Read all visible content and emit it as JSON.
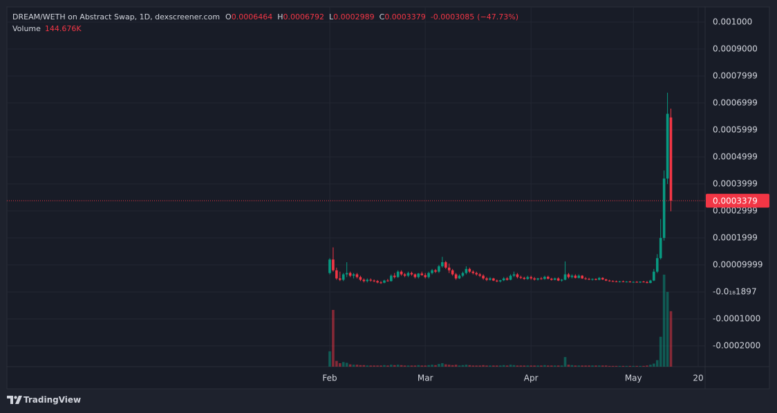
{
  "chart_data": {
    "type": "candlestick",
    "title": "DREAM/WETH on Abstract Swap, 1D, dexscreener.com",
    "ohlc_labels": [
      "O",
      "H",
      "L",
      "C"
    ],
    "change": -0.0003085,
    "change_pct_label": "(−47.73%)",
    "volume_title": "Volume",
    "volume_label": "144.676K",
    "categories": [
      "Feb",
      null,
      null,
      null,
      null,
      null,
      null,
      null,
      null,
      null,
      null,
      null,
      null,
      null,
      null,
      null,
      null,
      null,
      null,
      null,
      null,
      null,
      null,
      null,
      null,
      null,
      null,
      null,
      "Mar",
      null,
      null,
      null,
      null,
      null,
      null,
      null,
      null,
      null,
      null,
      null,
      null,
      null,
      null,
      null,
      null,
      null,
      null,
      null,
      null,
      null,
      null,
      null,
      null,
      null,
      null,
      null,
      null,
      null,
      null,
      "Apr",
      null,
      null,
      null,
      null,
      null,
      null,
      null,
      null,
      null,
      null,
      null,
      null,
      null,
      null,
      null,
      null,
      null,
      null,
      null,
      null,
      null,
      null,
      null,
      null,
      null,
      null,
      null,
      null,
      null,
      "May",
      null,
      null,
      null,
      null,
      null,
      null,
      null,
      null,
      null,
      null,
      null,
      null,
      null,
      null,
      null,
      null,
      null,
      null,
      "20"
    ],
    "open": [
      7e-05,
      0.00012,
      8e-05,
      5e-05,
      4.5e-05,
      6.5e-05,
      7e-05,
      6e-05,
      6.5e-05,
      5.5e-05,
      4.5e-05,
      4e-05,
      4.5e-05,
      4.2e-05,
      4e-05,
      3.5e-05,
      3.4e-05,
      4.2e-05,
      4e-05,
      6e-05,
      5.5e-05,
      7.5e-05,
      6.5e-05,
      6e-05,
      7e-05,
      6.5e-05,
      5.5e-05,
      6.8e-05,
      6.2e-05,
      5.5e-05,
      7e-05,
      8e-05,
      7.5e-05,
      9.5e-05,
      0.00011,
      9e-05,
      8e-05,
      6.5e-05,
      5e-05,
      6e-05,
      7e-05,
      8.5e-05,
      7.5e-05,
      7e-05,
      6.5e-05,
      6e-05,
      5e-05,
      4.5e-05,
      5e-05,
      4.2e-05,
      3.9e-05,
      4.3e-05,
      5e-05,
      4.5e-05,
      6e-05,
      6.5e-05,
      5.5e-05,
      5.2e-05,
      4.8e-05,
      5.5e-05,
      5e-05,
      4.6e-05,
      5e-05,
      4.8e-05,
      5.6e-05,
      4.9e-05,
      4.5e-05,
      5e-05,
      4.2e-05,
      4.5e-05,
      6.5e-05,
      5.5e-05,
      6e-05,
      5.2e-05,
      6e-05,
      5e-05,
      4.8e-05,
      4.6e-05,
      4.8e-05,
      4.5e-05,
      5.2e-05,
      4.6e-05,
      4.2e-05,
      4e-05,
      3.9e-05,
      3.8e-05,
      3.9e-05,
      3.7e-05,
      3.8e-05,
      3.6e-05,
      3.7e-05,
      3.5e-05,
      3.8e-05,
      3.6e-05,
      3.3e-05,
      4.2e-05,
      7.5e-05,
      0.000125,
      0.0002,
      0.00042,
      0.0006464,
      null,
      null,
      null,
      null,
      null,
      null,
      null,
      null
    ],
    "high": [
      0.000125,
      0.000165,
      9e-05,
      7.5e-05,
      7e-05,
      0.00011,
      7.5e-05,
      7e-05,
      7e-05,
      6e-05,
      5e-05,
      5e-05,
      5e-05,
      4.6e-05,
      4.4e-05,
      4e-05,
      4.5e-05,
      4.8e-05,
      6.5e-05,
      7e-05,
      8e-05,
      8e-05,
      7e-05,
      7.5e-05,
      7.5e-05,
      6.8e-05,
      7e-05,
      7.5e-05,
      7e-05,
      7.5e-05,
      8.5e-05,
      8.5e-05,
      0.0001,
      0.00013,
      0.000115,
      0.000105,
      8.5e-05,
      7e-05,
      6.5e-05,
      7.5e-05,
      9.5e-05,
      9e-05,
      8e-05,
      7.5e-05,
      7e-05,
      6.5e-05,
      5.5e-05,
      5.5e-05,
      5.2e-05,
      4.6e-05,
      4.5e-05,
      5.5e-05,
      5.5e-05,
      6.5e-05,
      7.5e-05,
      7e-05,
      6e-05,
      5.6e-05,
      6e-05,
      6e-05,
      5.5e-05,
      5.2e-05,
      5.5e-05,
      6e-05,
      6e-05,
      5.2e-05,
      5.3e-05,
      5.4e-05,
      4.8e-05,
      0.000113,
      7e-05,
      6.5e-05,
      6.5e-05,
      6.5e-05,
      6.2e-05,
      5.5e-05,
      5.2e-05,
      5e-05,
      5e-05,
      5.5e-05,
      5.4e-05,
      4.9e-05,
      4.5e-05,
      4.3e-05,
      4.2e-05,
      4.1e-05,
      4.2e-05,
      4e-05,
      4.1e-05,
      3.9e-05,
      4e-05,
      3.9e-05,
      4.1e-05,
      4.1e-05,
      4.5e-05,
      8.5e-05,
      0.00014,
      0.00027,
      0.00045,
      0.000738,
      0.0006792,
      null,
      null,
      null,
      null,
      null,
      null,
      null,
      null
    ],
    "low": [
      6.5e-05,
      7.5e-05,
      4.5e-05,
      4e-05,
      4e-05,
      5.5e-05,
      5.5e-05,
      5e-05,
      5e-05,
      4e-05,
      3.5e-05,
      3.5e-05,
      3.8e-05,
      3.6e-05,
      3.2e-05,
      3e-05,
      3.2e-05,
      3.8e-05,
      3.8e-05,
      5e-05,
      5.2e-05,
      6e-05,
      5.5e-05,
      5.5e-05,
      6e-05,
      5e-05,
      5e-05,
      6e-05,
      5e-05,
      5e-05,
      6.5e-05,
      7e-05,
      7e-05,
      9e-05,
      8.5e-05,
      7e-05,
      6e-05,
      4.5e-05,
      4.8e-05,
      5.5e-05,
      6.5e-05,
      7e-05,
      6.5e-05,
      6e-05,
      5.5e-05,
      4.5e-05,
      4e-05,
      4.2e-05,
      4e-05,
      3.6e-05,
      3.5e-05,
      4e-05,
      4.2e-05,
      4.3e-05,
      5.5e-05,
      5e-05,
      4.8e-05,
      4.5e-05,
      4.5e-05,
      4.5e-05,
      4.2e-05,
      4.2e-05,
      4.5e-05,
      4.5e-05,
      4.6e-05,
      4.2e-05,
      4.3e-05,
      4e-05,
      3.8e-05,
      4.3e-05,
      5e-05,
      5e-05,
      5e-05,
      5e-05,
      4.8e-05,
      4.5e-05,
      4.4e-05,
      4.2e-05,
      4.3e-05,
      4.3e-05,
      4.4e-05,
      4e-05,
      3.8e-05,
      3.7e-05,
      3.6e-05,
      3.5e-05,
      3.6e-05,
      3.5e-05,
      3.5e-05,
      3.4e-05,
      3.4e-05,
      3.3e-05,
      3.5e-05,
      3.2e-05,
      3.2e-05,
      4e-05,
      7e-05,
      0.00012,
      0.00019,
      0.0004,
      0.0002989,
      null,
      null,
      null,
      null,
      null,
      null,
      null,
      null
    ],
    "close": [
      0.00012,
      8e-05,
      5e-05,
      4.5e-05,
      6.5e-05,
      7e-05,
      6e-05,
      6.5e-05,
      5.5e-05,
      4.5e-05,
      4e-05,
      4.5e-05,
      4.2e-05,
      4e-05,
      3.5e-05,
      3.4e-05,
      4.2e-05,
      4e-05,
      6e-05,
      5.5e-05,
      7.5e-05,
      6.5e-05,
      6e-05,
      7e-05,
      6.5e-05,
      5.5e-05,
      6.8e-05,
      6.2e-05,
      5.5e-05,
      7e-05,
      8e-05,
      7.5e-05,
      9.5e-05,
      0.00011,
      9e-05,
      8e-05,
      6.5e-05,
      5e-05,
      6e-05,
      7e-05,
      8.5e-05,
      7.5e-05,
      7e-05,
      6.5e-05,
      6e-05,
      5e-05,
      4.5e-05,
      5e-05,
      4.2e-05,
      3.9e-05,
      4.3e-05,
      5e-05,
      4.5e-05,
      6e-05,
      6.5e-05,
      5.5e-05,
      5.2e-05,
      4.8e-05,
      5.5e-05,
      5e-05,
      4.6e-05,
      5e-05,
      4.8e-05,
      5.6e-05,
      4.9e-05,
      4.5e-05,
      5e-05,
      4.2e-05,
      4.5e-05,
      6.5e-05,
      5.5e-05,
      6e-05,
      5.2e-05,
      6e-05,
      5e-05,
      4.8e-05,
      4.6e-05,
      4.8e-05,
      4.5e-05,
      5.2e-05,
      4.6e-05,
      4.2e-05,
      4e-05,
      3.9e-05,
      3.8e-05,
      3.9e-05,
      3.7e-05,
      3.8e-05,
      3.6e-05,
      3.7e-05,
      3.5e-05,
      3.8e-05,
      3.6e-05,
      3.3e-05,
      4.2e-05,
      7.5e-05,
      0.000125,
      0.0002,
      0.00042,
      0.00066,
      0.0003379,
      null,
      null,
      null,
      null,
      null,
      null,
      null,
      null
    ],
    "volume": [
      40000,
      148000,
      15000,
      9000,
      12000,
      10000,
      6000,
      5000,
      5000,
      4000,
      4000,
      3000,
      3000,
      3000,
      3000,
      3000,
      4000,
      3000,
      5000,
      4000,
      5000,
      4000,
      3000,
      3000,
      3000,
      3000,
      4000,
      3000,
      3000,
      4000,
      5000,
      4000,
      7000,
      9000,
      6000,
      5000,
      4000,
      5000,
      3000,
      4000,
      5000,
      4000,
      3000,
      3000,
      3000,
      4000,
      3000,
      3000,
      3000,
      3000,
      3000,
      4000,
      3000,
      5000,
      4000,
      3000,
      3000,
      3000,
      3000,
      3000,
      3000,
      3000,
      3000,
      4000,
      3000,
      3000,
      3000,
      3000,
      3000,
      25000,
      5000,
      4000,
      3000,
      3000,
      3000,
      3000,
      3000,
      3000,
      3000,
      3000,
      3000,
      3000,
      2000,
      2000,
      2000,
      2000,
      2000,
      2000,
      2000,
      2000,
      2000,
      2000,
      2000,
      3000,
      5000,
      8000,
      17000,
      78000,
      240000,
      195000,
      144676,
      null,
      null,
      null,
      null,
      null,
      null,
      null,
      null
    ],
    "up_color": "#089981",
    "down_color": "#f23645",
    "ylim": [
      -0.000277,
      0.001056
    ],
    "yticks": [
      {
        "value": 0.001,
        "label": "0.001000"
      },
      {
        "value": 0.0009,
        "label": "0.0009000"
      },
      {
        "value": 0.0008,
        "label": "0.0007999"
      },
      {
        "value": 0.0007,
        "label": "0.0006999"
      },
      {
        "value": 0.0006,
        "label": "0.0005999"
      },
      {
        "value": 0.0005,
        "label": "0.0004999"
      },
      {
        "value": 0.0004,
        "label": "0.0003999"
      },
      {
        "value": 0.0003,
        "label": "0.0002999"
      },
      {
        "value": 0.0002,
        "label": "0.0001999"
      },
      {
        "value": 0.0001,
        "label": "0.00009999"
      },
      {
        "value": -1.897e-19,
        "label": "-0.0₁₈1897"
      },
      {
        "value": -0.0001,
        "label": "-0.0001000"
      },
      {
        "value": -0.0002,
        "label": "-0.0002000"
      }
    ],
    "grid": true,
    "last_price_line": true
  },
  "footer": {
    "brand": "TradingView"
  }
}
